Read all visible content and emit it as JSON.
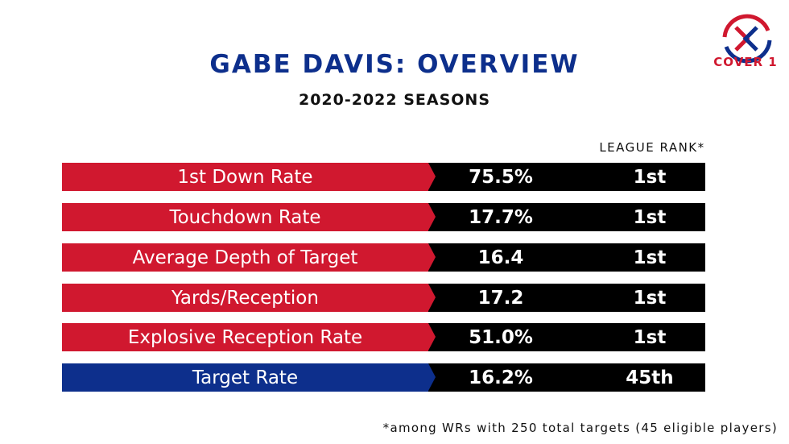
{
  "title": "GABE DAVIS: OVERVIEW",
  "subtitle": "2020-2022 SEASONS",
  "rank_header": "LEAGUE RANK*",
  "logo": {
    "text": "COVER 1",
    "colors": [
      "#d0182f",
      "#0d2f8c"
    ]
  },
  "colors": {
    "red": "#d0182f",
    "blue": "#0d2f8c",
    "black": "#000000"
  },
  "rows": [
    {
      "label": "1st Down Rate",
      "value": "75.5%",
      "rank": "1st",
      "color": "#d0182f"
    },
    {
      "label": "Touchdown Rate",
      "value": "17.7%",
      "rank": "1st",
      "color": "#d0182f"
    },
    {
      "label": "Average Depth of Target",
      "value": "16.4",
      "rank": "1st",
      "color": "#d0182f"
    },
    {
      "label": "Yards/Reception",
      "value": "17.2",
      "rank": "1st",
      "color": "#d0182f"
    },
    {
      "label": "Explosive Reception Rate",
      "value": "51.0%",
      "rank": "1st",
      "color": "#d0182f"
    },
    {
      "label": "Target Rate",
      "value": "16.2%",
      "rank": "45th",
      "color": "#0d2f8c"
    }
  ],
  "footnote": "*among WRs with 250 total targets (45 eligible players)"
}
